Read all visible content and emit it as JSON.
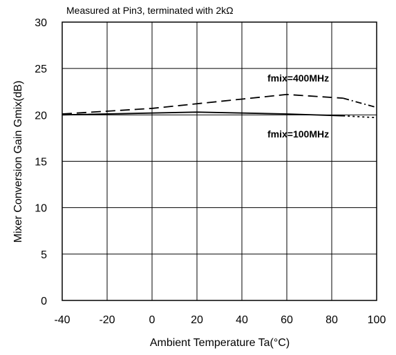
{
  "chart_data": {
    "type": "line",
    "title": "",
    "annotation": "Measured at Pin3, terminated with 2kΩ",
    "xlabel": "Ambient Temperature Ta(°C)",
    "ylabel": "Mixer Conversion Gain Gmix(dB)",
    "xlim": [
      -40,
      100
    ],
    "ylim": [
      0,
      30
    ],
    "xticks": [
      "-40",
      "-20",
      "0",
      "20",
      "40",
      "60",
      "80",
      "100"
    ],
    "yticks": [
      "0",
      "5",
      "10",
      "15",
      "20",
      "25",
      "30"
    ],
    "grid": true,
    "series": [
      {
        "name": "fmix=400MHz",
        "line_style": "dashed",
        "extension_style": "dash-dot",
        "x": [
          -40,
          0,
          60,
          85
        ],
        "y": [
          20.1,
          20.7,
          22.2,
          21.8
        ],
        "extension_x": [
          85,
          100
        ],
        "extension_y": [
          21.8,
          20.8
        ],
        "color": "#000000"
      },
      {
        "name": "fmix=100MHz",
        "line_style": "solid",
        "extension_style": "dotted",
        "x": [
          -40,
          20,
          60,
          85
        ],
        "y": [
          20.0,
          20.3,
          20.1,
          19.9
        ],
        "extension_x": [
          85,
          100
        ],
        "extension_y": [
          19.9,
          19.7
        ],
        "color": "#000000"
      }
    ]
  }
}
